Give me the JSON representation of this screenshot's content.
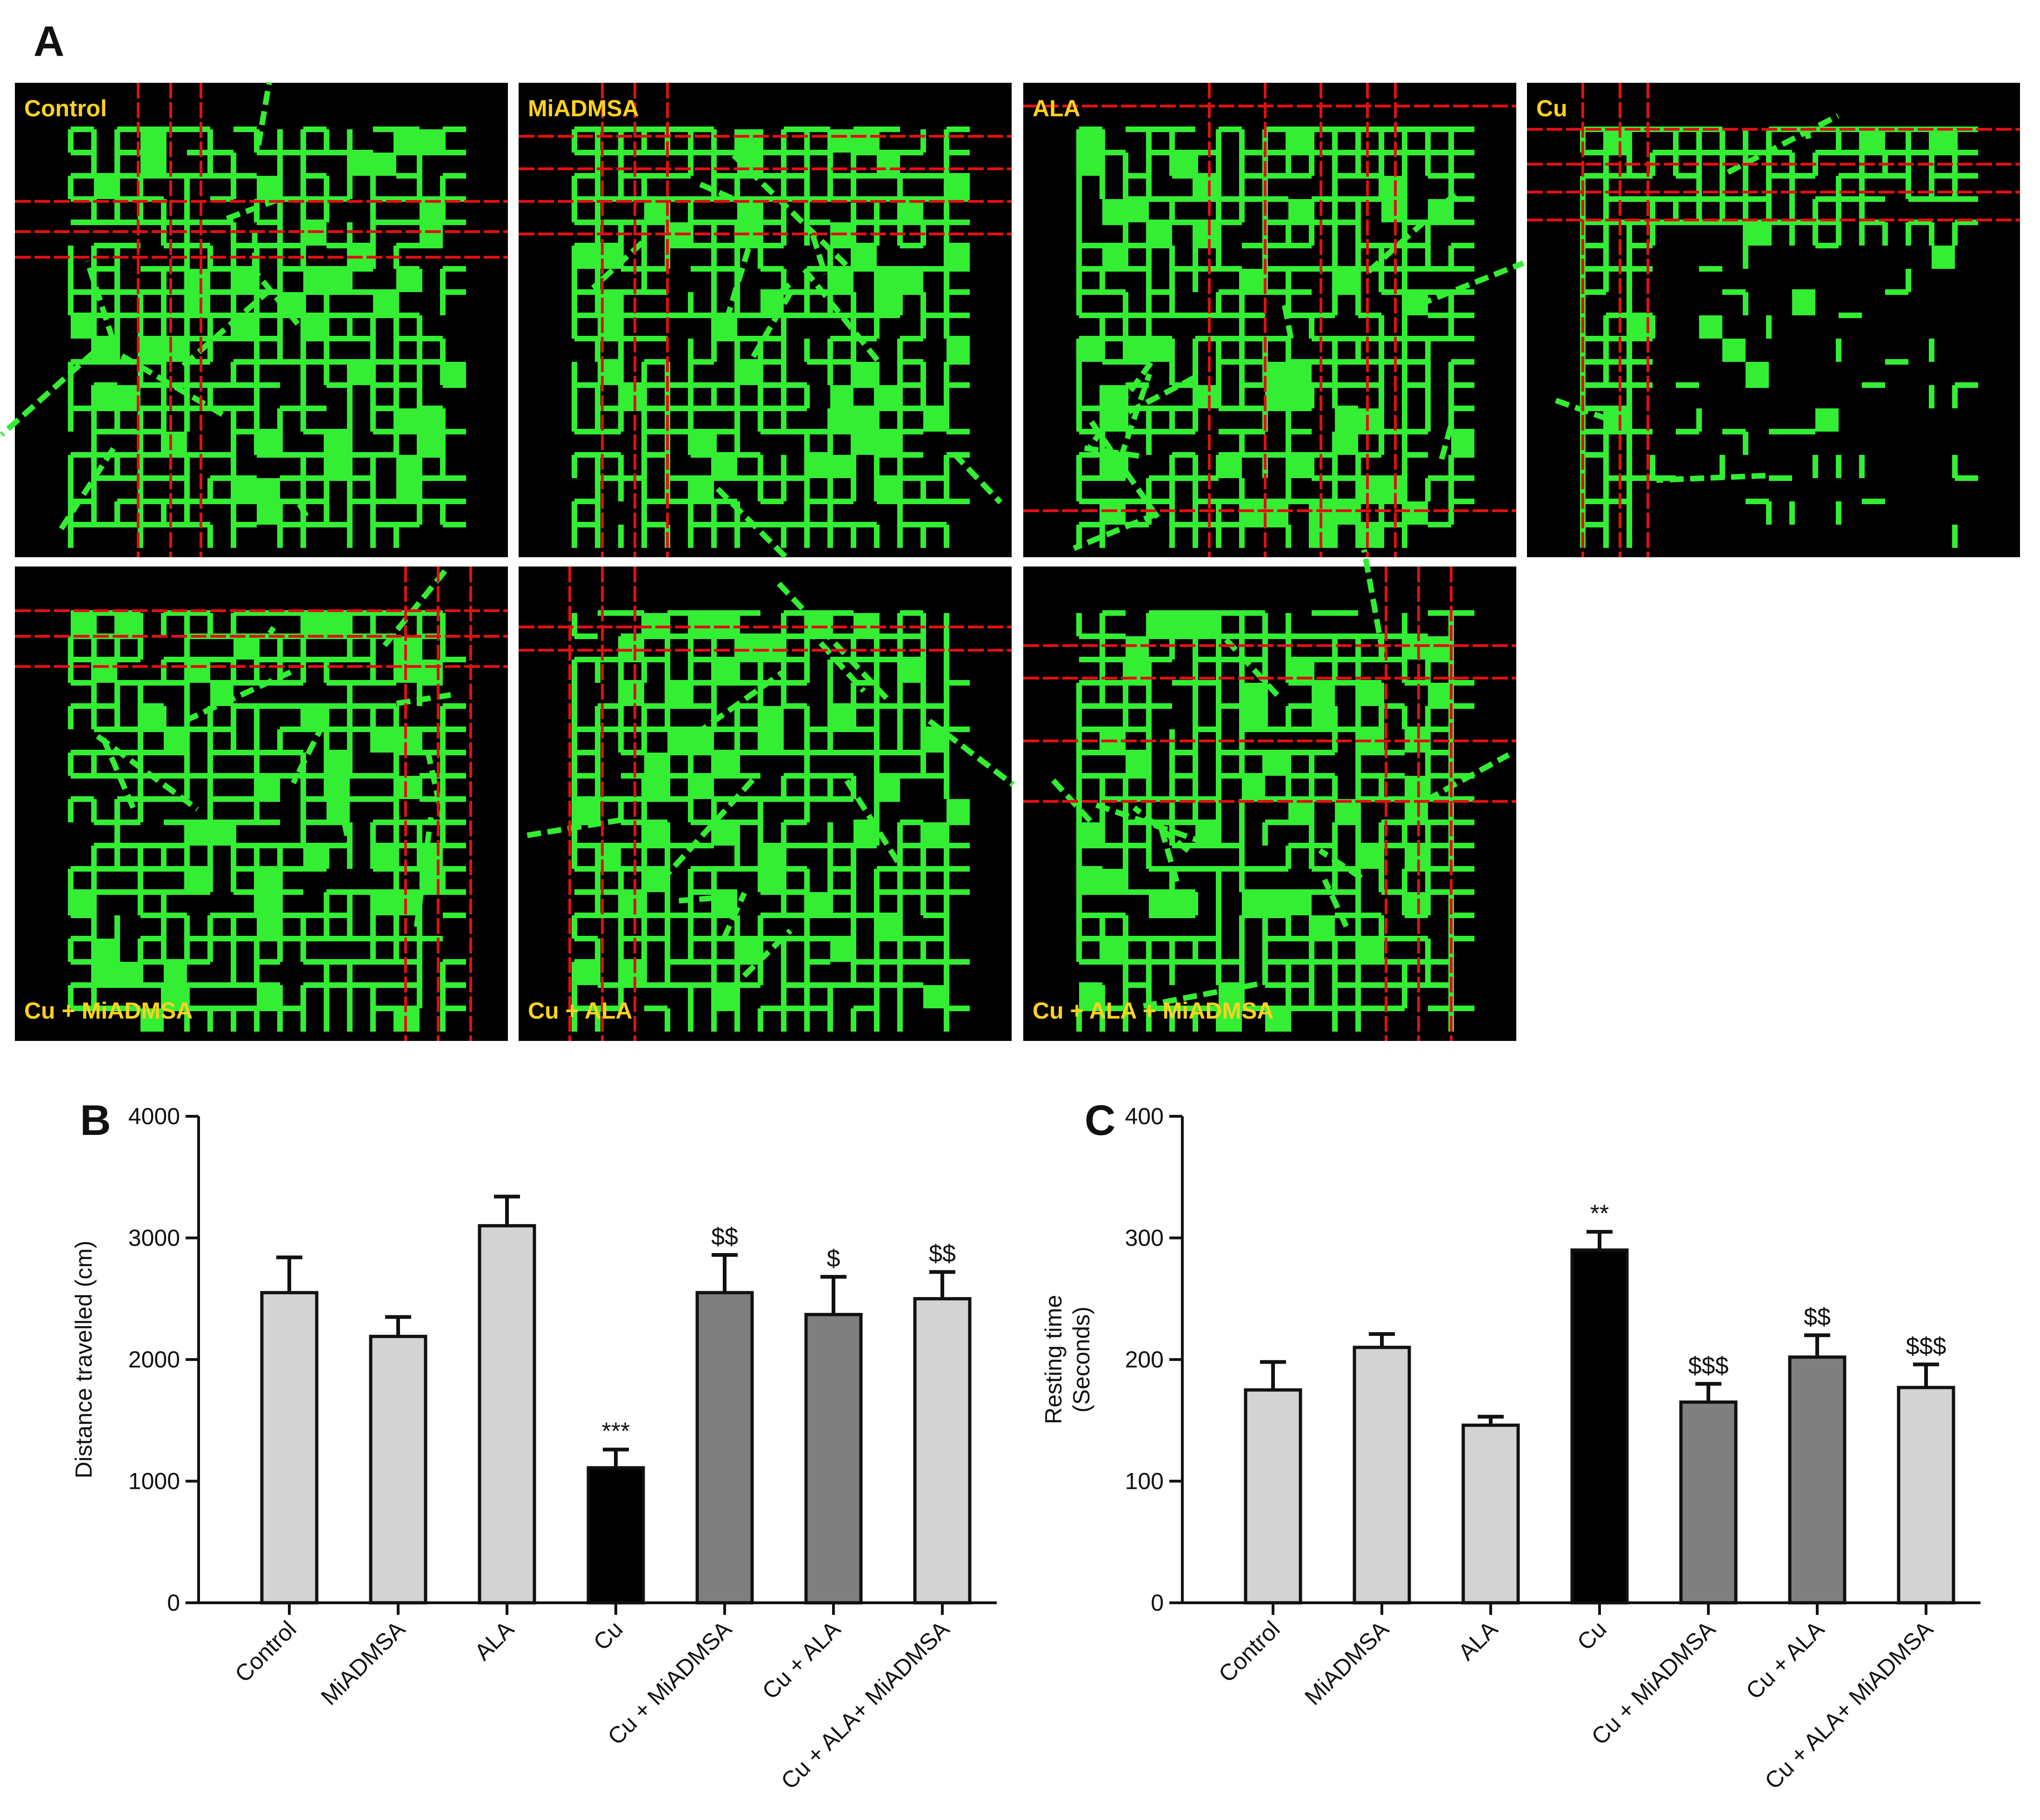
{
  "figure": {
    "panel_a": {
      "letter": "A",
      "tracks": [
        {
          "label": "Control",
          "label_pos": "top-left"
        },
        {
          "label": "MiADMSA",
          "label_pos": "top-left"
        },
        {
          "label": "ALA",
          "label_pos": "top-left"
        },
        {
          "label": "Cu",
          "label_pos": "top-left"
        },
        {
          "label": "Cu + MiADMSA",
          "label_pos": "bottom-left"
        },
        {
          "label": "Cu + ALA",
          "label_pos": "bottom-left"
        },
        {
          "label": "Cu + ALA + MiADMSA",
          "label_pos": "bottom-left"
        }
      ],
      "colors": {
        "background": "#000000",
        "track": "#33ee33",
        "crossing_lines": "#e01010"
      }
    }
  },
  "chart_data": [
    {
      "panel": "B",
      "type": "bar",
      "ylabel": "Distance travelled (cm)",
      "ylim": [
        0,
        4000
      ],
      "yticks": [
        "0",
        "1000",
        "2000",
        "3000",
        "4000"
      ],
      "categories": [
        "Control",
        "MiADMSA",
        "ALA",
        "Cu",
        "Cu + MiADMSA",
        "Cu + ALA",
        "Cu + ALA+ MiADMSA"
      ],
      "values": [
        2550,
        2190,
        3100,
        1110,
        2550,
        2370,
        2500
      ],
      "errors": [
        290,
        160,
        240,
        150,
        310,
        310,
        220
      ],
      "bar_colors": [
        "#d3d3d3",
        "#d3d3d3",
        "#d3d3d3",
        "#000000",
        "#7f7f7f",
        "#7f7f7f",
        "#d3d3d3"
      ],
      "annotations": [
        "",
        "",
        "",
        "***",
        "$$",
        "$",
        "$$"
      ]
    },
    {
      "panel": "C",
      "type": "bar",
      "ylabel": "Resting time (Seconds)",
      "ylabel_lines": [
        "Resting time",
        "(Seconds)"
      ],
      "ylim": [
        0,
        400
      ],
      "yticks": [
        "0",
        "100",
        "200",
        "300",
        "400"
      ],
      "categories": [
        "Control",
        "MiADMSA",
        "ALA",
        "Cu",
        "Cu + MiADMSA",
        "Cu + ALA",
        "Cu + ALA+ MiADMSA"
      ],
      "values": [
        175,
        210,
        146,
        290,
        165,
        202,
        177
      ],
      "errors": [
        23,
        11,
        7,
        15,
        15,
        18,
        19
      ],
      "bar_colors": [
        "#d3d3d3",
        "#d3d3d3",
        "#d3d3d3",
        "#000000",
        "#7f7f7f",
        "#7f7f7f",
        "#d3d3d3"
      ],
      "annotations": [
        "",
        "",
        "",
        "**",
        "$$$",
        "$$",
        "$$$"
      ]
    }
  ]
}
